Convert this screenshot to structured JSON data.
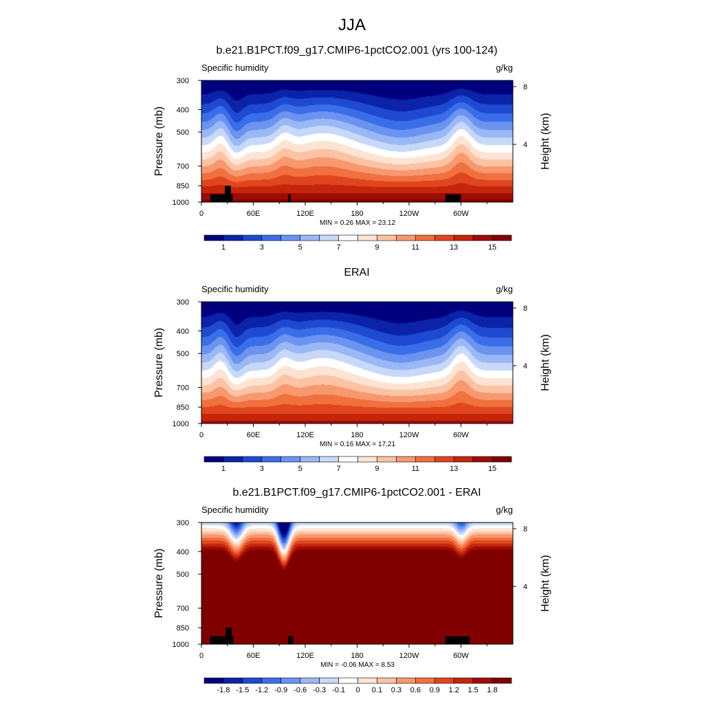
{
  "figure": {
    "title": "JJA"
  },
  "chart_data": [
    {
      "type": "heatmap",
      "title": "b.e21.B1PCT.f09_g17.CMIP6-1pctCO2.001 (yrs 100-124)",
      "left_label": "Specific humidity",
      "right_label": "g/kg",
      "ylabel": "Pressure (mb)",
      "y2label": "Height (km)",
      "x_ticks": [
        "0",
        "60E",
        "120E",
        "180",
        "120W",
        "60W"
      ],
      "x_tick_lon": [
        0,
        60,
        120,
        180,
        240,
        300
      ],
      "xlim": [
        0,
        360
      ],
      "y_ticks": [
        "300",
        "400",
        "500",
        "700",
        "850",
        "1000"
      ],
      "y_tick_p": [
        300,
        400,
        500,
        700,
        850,
        1000
      ],
      "ylim": [
        1000,
        300
      ],
      "height_ticks": [
        "8",
        "4"
      ],
      "height_tick_km": [
        8,
        4
      ],
      "min_label": "MIN =",
      "min": "0.26",
      "max_label": "MAX =",
      "max": "23.12",
      "colorbar_labels": [
        "1",
        "3",
        "5",
        "7",
        "9",
        "11",
        "13",
        "15"
      ],
      "colorbar_colors": [
        "#00007f",
        "#0a23a8",
        "#1e4ad2",
        "#3a6ee8",
        "#6a94f0",
        "#9ab8f5",
        "#c7d8f9",
        "#ffffff",
        "#fde3d3",
        "#fbc3a3",
        "#f7986e",
        "#f0703f",
        "#e0461d",
        "#c4250c",
        "#a00c04",
        "#800000"
      ],
      "land_masks": [
        {
          "lon0": 10,
          "lon1": 36,
          "p_top": 925
        },
        {
          "lon0": 27,
          "lon1": 34,
          "p_top": 850
        },
        {
          "lon0": 100,
          "lon1": 103,
          "p_top": 925
        },
        {
          "lon0": 282,
          "lon1": 300,
          "p_top": 925
        }
      ]
    },
    {
      "type": "heatmap",
      "title": "ERAI",
      "left_label": "Specific humidity",
      "right_label": "g/kg",
      "ylabel": "Pressure (mb)",
      "y2label": "Height (km)",
      "x_ticks": [
        "0",
        "60E",
        "120E",
        "180",
        "120W",
        "60W"
      ],
      "x_tick_lon": [
        0,
        60,
        120,
        180,
        240,
        300
      ],
      "xlim": [
        0,
        360
      ],
      "y_ticks": [
        "300",
        "400",
        "500",
        "700",
        "850",
        "1000"
      ],
      "y_tick_p": [
        300,
        400,
        500,
        700,
        850,
        1000
      ],
      "ylim": [
        1000,
        300
      ],
      "height_ticks": [
        "8",
        "4"
      ],
      "height_tick_km": [
        8,
        4
      ],
      "min_label": "MIN =",
      "min": "0.16",
      "max_label": "MAX =",
      "max": "17.21",
      "colorbar_labels": [
        "1",
        "3",
        "5",
        "7",
        "9",
        "11",
        "13",
        "15"
      ],
      "colorbar_colors": [
        "#00007f",
        "#0a23a8",
        "#1e4ad2",
        "#3a6ee8",
        "#6a94f0",
        "#9ab8f5",
        "#c7d8f9",
        "#ffffff",
        "#fde3d3",
        "#fbc3a3",
        "#f7986e",
        "#f0703f",
        "#e0461d",
        "#c4250c",
        "#a00c04",
        "#800000"
      ],
      "land_masks": []
    },
    {
      "type": "heatmap",
      "title": "b.e21.B1PCT.f09_g17.CMIP6-1pctCO2.001 - ERAI",
      "left_label": "Specific humidity",
      "right_label": "g/kg",
      "ylabel": "Pressure (mb)",
      "y2label": "Height (km)",
      "x_ticks": [
        "0",
        "60E",
        "120E",
        "180",
        "120W",
        "60W"
      ],
      "x_tick_lon": [
        0,
        60,
        120,
        180,
        240,
        300
      ],
      "xlim": [
        0,
        360
      ],
      "y_ticks": [
        "300",
        "400",
        "500",
        "700",
        "850",
        "1000"
      ],
      "y_tick_p": [
        300,
        400,
        500,
        700,
        850,
        1000
      ],
      "ylim": [
        1000,
        300
      ],
      "height_ticks": [
        "8",
        "4"
      ],
      "height_tick_km": [
        8,
        4
      ],
      "min_label": "MIN =",
      "min": "-0.06",
      "max_label": "MAX =",
      "max": "8.53",
      "colorbar_labels": [
        "-1.8",
        "-1.5",
        "-1.2",
        "-0.9",
        "-0.6",
        "-0.3",
        "-0.1",
        "0",
        "0.1",
        "0.3",
        "0.6",
        "0.9",
        "1.2",
        "1.5",
        "1.8"
      ],
      "colorbar_colors": [
        "#00007f",
        "#0a23a8",
        "#1e4ad2",
        "#3a6ee8",
        "#6a94f0",
        "#9ab8f5",
        "#c7d8f9",
        "#ffffff",
        "#fde3d3",
        "#fbc3a3",
        "#f7986e",
        "#f0703f",
        "#e0461d",
        "#c4250c",
        "#a00c04",
        "#800000"
      ],
      "land_masks": [
        {
          "lon0": 10,
          "lon1": 37,
          "p_top": 925
        },
        {
          "lon0": 28,
          "lon1": 35,
          "p_top": 850
        },
        {
          "lon0": 100,
          "lon1": 106,
          "p_top": 925
        },
        {
          "lon0": 282,
          "lon1": 310,
          "p_top": 925
        }
      ]
    }
  ]
}
